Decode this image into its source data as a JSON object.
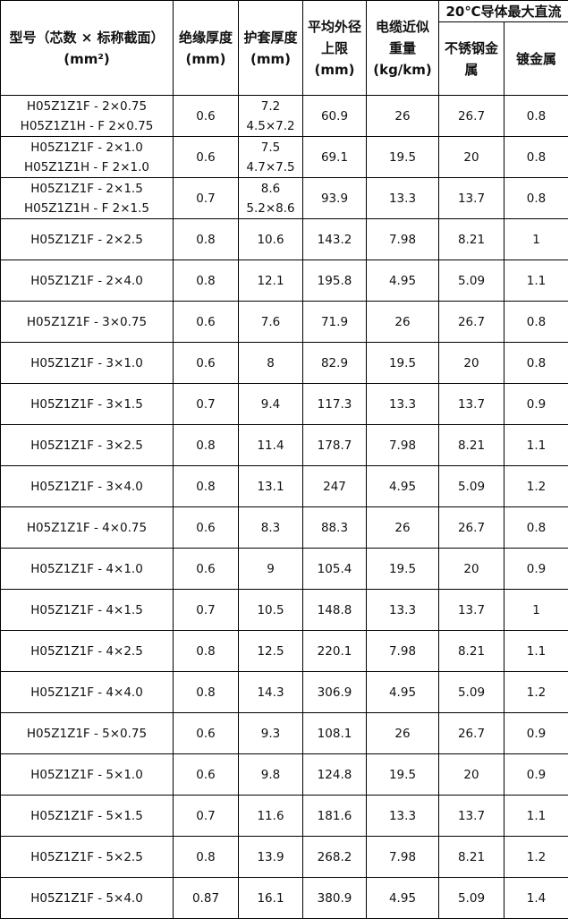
{
  "headers": {
    "model": "型号（芯数 × 标称截面）(mm²)",
    "model_line1": "型号（芯数 × 标称截面）",
    "model_line2": "(mm²)",
    "insulation": "绝缘厚度",
    "insulation_unit": "(mm)",
    "sheath": "护套厚度",
    "sheath_unit": "(mm)",
    "diameter_l1": "平均外径",
    "diameter_l2": "上限",
    "diameter_unit": "(mm)",
    "weight_l1": "电缆近似",
    "weight_l2": "重量",
    "weight_unit": "(kg/km)",
    "group": "20℃导体最大直流",
    "stainless_l1": "不锈钢金",
    "stainless_l2": "属",
    "plated": "镀金属"
  },
  "rows": [
    {
      "model": [
        "H05Z1Z1F - 2×0.75",
        "H05Z1Z1H - F 2×0.75"
      ],
      "ins": "0.6",
      "sheath": [
        "7.2",
        "4.5×7.2"
      ],
      "dia": "60.9",
      "wt": "26",
      "ss": "26.7",
      "pl": "0.8"
    },
    {
      "model": [
        "H05Z1Z1F - 2×1.0",
        "H05Z1Z1H - F 2×1.0"
      ],
      "ins": "0.6",
      "sheath": [
        "7.5",
        "4.7×7.5"
      ],
      "dia": "69.1",
      "wt": "19.5",
      "ss": "20",
      "pl": "0.8"
    },
    {
      "model": [
        "H05Z1Z1F - 2×1.5",
        "H05Z1Z1H - F 2×1.5"
      ],
      "ins": "0.7",
      "sheath": [
        "8.6",
        "5.2×8.6"
      ],
      "dia": "93.9",
      "wt": "13.3",
      "ss": "13.7",
      "pl": "0.8"
    },
    {
      "model": [
        "H05Z1Z1F - 2×2.5"
      ],
      "ins": "0.8",
      "sheath": [
        "10.6"
      ],
      "dia": "143.2",
      "wt": "7.98",
      "ss": "8.21",
      "pl": "1"
    },
    {
      "model": [
        "H05Z1Z1F - 2×4.0"
      ],
      "ins": "0.8",
      "sheath": [
        "12.1"
      ],
      "dia": "195.8",
      "wt": "4.95",
      "ss": "5.09",
      "pl": "1.1"
    },
    {
      "model": [
        "H05Z1Z1F - 3×0.75"
      ],
      "ins": "0.6",
      "sheath": [
        "7.6"
      ],
      "dia": "71.9",
      "wt": "26",
      "ss": "26.7",
      "pl": "0.8"
    },
    {
      "model": [
        "H05Z1Z1F - 3×1.0"
      ],
      "ins": "0.6",
      "sheath": [
        "8"
      ],
      "dia": "82.9",
      "wt": "19.5",
      "ss": "20",
      "pl": "0.8"
    },
    {
      "model": [
        "H05Z1Z1F - 3×1.5"
      ],
      "ins": "0.7",
      "sheath": [
        "9.4"
      ],
      "dia": "117.3",
      "wt": "13.3",
      "ss": "13.7",
      "pl": "0.9"
    },
    {
      "model": [
        "H05Z1Z1F - 3×2.5"
      ],
      "ins": "0.8",
      "sheath": [
        "11.4"
      ],
      "dia": "178.7",
      "wt": "7.98",
      "ss": "8.21",
      "pl": "1.1"
    },
    {
      "model": [
        "H05Z1Z1F - 3×4.0"
      ],
      "ins": "0.8",
      "sheath": [
        "13.1"
      ],
      "dia": "247",
      "wt": "4.95",
      "ss": "5.09",
      "pl": "1.2"
    },
    {
      "model": [
        "H05Z1Z1F - 4×0.75"
      ],
      "ins": "0.6",
      "sheath": [
        "8.3"
      ],
      "dia": "88.3",
      "wt": "26",
      "ss": "26.7",
      "pl": "0.8"
    },
    {
      "model": [
        "H05Z1Z1F - 4×1.0"
      ],
      "ins": "0.6",
      "sheath": [
        "9"
      ],
      "dia": "105.4",
      "wt": "19.5",
      "ss": "20",
      "pl": "0.9"
    },
    {
      "model": [
        "H05Z1Z1F - 4×1.5"
      ],
      "ins": "0.7",
      "sheath": [
        "10.5"
      ],
      "dia": "148.8",
      "wt": "13.3",
      "ss": "13.7",
      "pl": "1"
    },
    {
      "model": [
        "H05Z1Z1F - 4×2.5"
      ],
      "ins": "0.8",
      "sheath": [
        "12.5"
      ],
      "dia": "220.1",
      "wt": "7.98",
      "ss": "8.21",
      "pl": "1.1"
    },
    {
      "model": [
        "H05Z1Z1F - 4×4.0"
      ],
      "ins": "0.8",
      "sheath": [
        "14.3"
      ],
      "dia": "306.9",
      "wt": "4.95",
      "ss": "5.09",
      "pl": "1.2"
    },
    {
      "model": [
        "H05Z1Z1F - 5×0.75"
      ],
      "ins": "0.6",
      "sheath": [
        "9.3"
      ],
      "dia": "108.1",
      "wt": "26",
      "ss": "26.7",
      "pl": "0.9"
    },
    {
      "model": [
        "H05Z1Z1F - 5×1.0"
      ],
      "ins": "0.6",
      "sheath": [
        "9.8"
      ],
      "dia": "124.8",
      "wt": "19.5",
      "ss": "20",
      "pl": "0.9"
    },
    {
      "model": [
        "H05Z1Z1F - 5×1.5"
      ],
      "ins": "0.7",
      "sheath": [
        "11.6"
      ],
      "dia": "181.6",
      "wt": "13.3",
      "ss": "13.7",
      "pl": "1.1"
    },
    {
      "model": [
        "H05Z1Z1F - 5×2.5"
      ],
      "ins": "0.8",
      "sheath": [
        "13.9"
      ],
      "dia": "268.2",
      "wt": "7.98",
      "ss": "8.21",
      "pl": "1.2"
    },
    {
      "model": [
        "H05Z1Z1F - 5×4.0"
      ],
      "ins": "0.87",
      "sheath": [
        "16.1"
      ],
      "dia": "380.9",
      "wt": "4.95",
      "ss": "5.09",
      "pl": "1.4"
    }
  ]
}
